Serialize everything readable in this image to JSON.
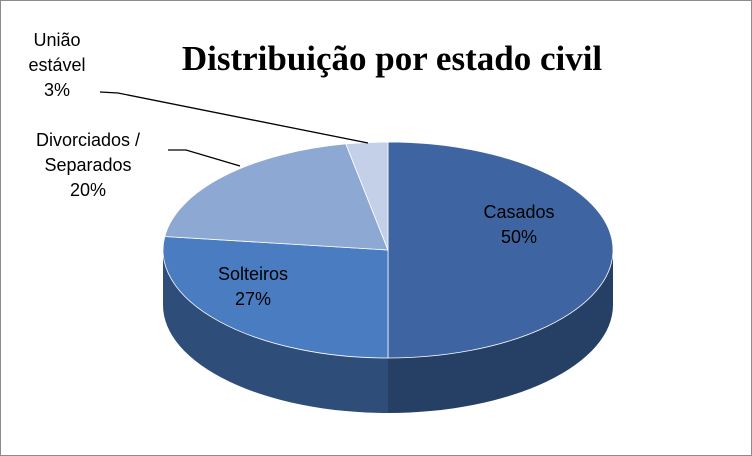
{
  "chart_data": {
    "type": "pie3d",
    "title": "Distribuição por estado civil",
    "categories": [
      "Casados",
      "Solteiros",
      "Divorciados / Separados",
      "União estável"
    ],
    "values": [
      50,
      27,
      20,
      3
    ],
    "value_labels": [
      "50%",
      "27%",
      "20%",
      "3%"
    ],
    "colors": [
      "#3e65a1",
      "#4a7cc1",
      "#8ea8d4",
      "#c3d0e7"
    ]
  }
}
